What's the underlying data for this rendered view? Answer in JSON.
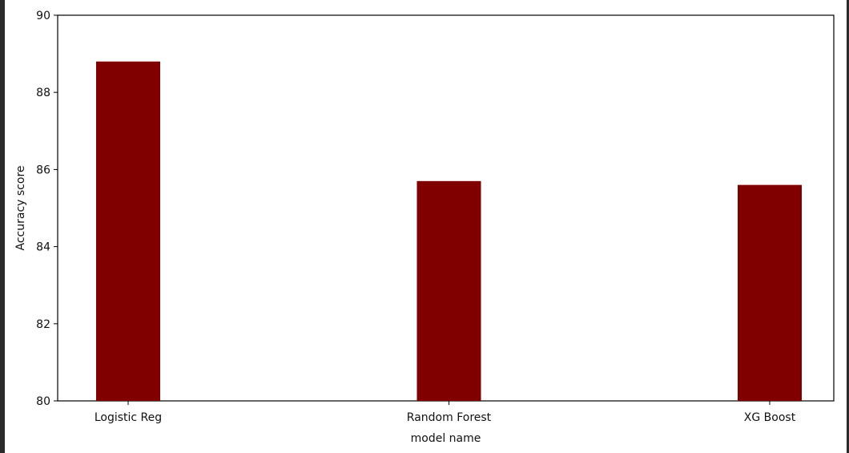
{
  "chart_data": {
    "type": "bar",
    "categories": [
      "Logistic Reg",
      "Random Forest",
      "XG Boost"
    ],
    "values": [
      88.8,
      85.7,
      85.6
    ],
    "title": "",
    "xlabel": "model name",
    "ylabel": "Accuracy score",
    "ylim": [
      80,
      90
    ],
    "yticks": [
      80,
      82,
      84,
      86,
      88,
      90
    ],
    "bar_color": "#800000",
    "grid": false
  }
}
